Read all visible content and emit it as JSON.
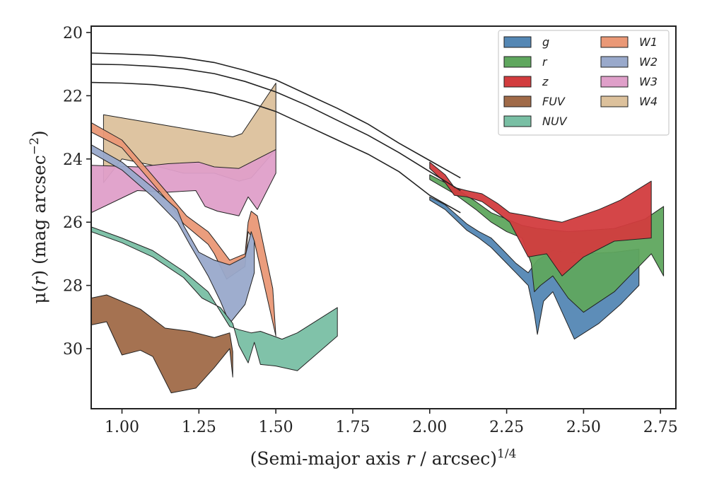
{
  "chart_data": {
    "type": "area",
    "xlabel_text": "(Semi-major axis ",
    "xlabel_var": "r",
    "xlabel_rest": " / arcsec)",
    "xlabel_sup": "1/4",
    "ylabel_mu": "μ(",
    "ylabel_r": "r",
    "ylabel_rest": ") (mag arcsec",
    "ylabel_sup": "−2",
    "ylabel_close": ")",
    "xlim": [
      0.9,
      2.8
    ],
    "ylim": [
      31.9,
      19.8
    ],
    "yinverted": true,
    "x_ticks": [
      1.0,
      1.25,
      1.5,
      1.75,
      2.0,
      2.25,
      2.5,
      2.75
    ],
    "x_tick_labels": [
      "1.00",
      "1.25",
      "1.50",
      "1.75",
      "2.00",
      "2.25",
      "2.50",
      "2.75"
    ],
    "y_ticks": [
      20,
      22,
      24,
      26,
      28,
      30
    ],
    "y_tick_labels": [
      "20",
      "22",
      "24",
      "26",
      "28",
      "30"
    ],
    "legend_placement": "top-right",
    "model_curves": [
      {
        "points": [
          [
            0.9,
            20.65
          ],
          [
            1.0,
            20.68
          ],
          [
            1.1,
            20.72
          ],
          [
            1.2,
            20.8
          ],
          [
            1.3,
            20.95
          ],
          [
            1.4,
            21.2
          ],
          [
            1.5,
            21.5
          ],
          [
            1.6,
            21.95
          ],
          [
            1.7,
            22.4
          ],
          [
            1.8,
            22.9
          ],
          [
            1.9,
            23.5
          ],
          [
            2.0,
            24.05
          ],
          [
            2.1,
            24.6
          ]
        ]
      },
      {
        "points": [
          [
            0.9,
            21.0
          ],
          [
            1.0,
            21.02
          ],
          [
            1.1,
            21.07
          ],
          [
            1.2,
            21.15
          ],
          [
            1.3,
            21.3
          ],
          [
            1.4,
            21.55
          ],
          [
            1.5,
            21.88
          ],
          [
            1.6,
            22.3
          ],
          [
            1.7,
            22.78
          ],
          [
            1.8,
            23.25
          ],
          [
            1.9,
            23.8
          ],
          [
            2.0,
            24.4
          ],
          [
            2.1,
            25.0
          ]
        ]
      },
      {
        "points": [
          [
            0.9,
            21.58
          ],
          [
            1.0,
            21.6
          ],
          [
            1.1,
            21.65
          ],
          [
            1.2,
            21.75
          ],
          [
            1.3,
            21.92
          ],
          [
            1.4,
            22.18
          ],
          [
            1.5,
            22.5
          ],
          [
            1.6,
            22.95
          ],
          [
            1.7,
            23.4
          ],
          [
            1.8,
            23.85
          ],
          [
            1.9,
            24.4
          ],
          [
            2.0,
            25.15
          ],
          [
            2.1,
            25.7
          ]
        ]
      }
    ],
    "series": [
      {
        "name": "W4",
        "color": "#dcc19c",
        "upper": [
          [
            0.94,
            22.6
          ],
          [
            1.06,
            22.8
          ],
          [
            1.18,
            23.0
          ],
          [
            1.3,
            23.2
          ],
          [
            1.36,
            23.3
          ],
          [
            1.39,
            23.2
          ],
          [
            1.5,
            21.6
          ]
        ],
        "lower": [
          [
            0.94,
            24.75
          ],
          [
            1.0,
            24.0
          ],
          [
            1.1,
            24.2
          ],
          [
            1.2,
            24.45
          ],
          [
            1.3,
            24.45
          ],
          [
            1.38,
            24.7
          ],
          [
            1.42,
            24.6
          ],
          [
            1.5,
            23.7
          ]
        ]
      },
      {
        "name": "W3",
        "color": "#df9fc9",
        "upper": [
          [
            0.9,
            24.2
          ],
          [
            1.05,
            24.25
          ],
          [
            1.15,
            24.15
          ],
          [
            1.25,
            24.1
          ],
          [
            1.3,
            24.25
          ],
          [
            1.38,
            24.3
          ],
          [
            1.5,
            23.7
          ]
        ],
        "lower": [
          [
            0.9,
            25.7
          ],
          [
            1.05,
            25.0
          ],
          [
            1.15,
            25.05
          ],
          [
            1.24,
            25.0
          ],
          [
            1.27,
            25.5
          ],
          [
            1.31,
            25.65
          ],
          [
            1.38,
            25.8
          ],
          [
            1.41,
            25.2
          ],
          [
            1.44,
            25.6
          ],
          [
            1.5,
            24.45
          ]
        ]
      },
      {
        "name": "W1",
        "color": "#ea9876",
        "upper": [
          [
            0.9,
            22.85
          ],
          [
            1.0,
            23.4
          ],
          [
            1.08,
            24.3
          ],
          [
            1.15,
            25.1
          ],
          [
            1.21,
            25.8
          ],
          [
            1.28,
            26.3
          ],
          [
            1.3,
            26.55
          ],
          [
            1.35,
            27.2
          ],
          [
            1.4,
            27.0
          ],
          [
            1.41,
            26.0
          ],
          [
            1.42,
            25.65
          ],
          [
            1.44,
            25.8
          ],
          [
            1.49,
            28.1
          ]
        ],
        "lower": [
          [
            0.9,
            23.15
          ],
          [
            1.0,
            23.65
          ],
          [
            1.08,
            24.55
          ],
          [
            1.15,
            25.35
          ],
          [
            1.2,
            26.05
          ],
          [
            1.28,
            26.7
          ],
          [
            1.3,
            27.0
          ],
          [
            1.34,
            27.8
          ],
          [
            1.4,
            27.4
          ],
          [
            1.41,
            26.3
          ],
          [
            1.43,
            26.6
          ],
          [
            1.5,
            29.6
          ]
        ]
      },
      {
        "name": "W2",
        "color": "#99a9cb",
        "upper": [
          [
            0.9,
            23.55
          ],
          [
            1.0,
            24.1
          ],
          [
            1.1,
            24.9
          ],
          [
            1.18,
            25.6
          ],
          [
            1.2,
            26.1
          ],
          [
            1.25,
            26.95
          ],
          [
            1.3,
            27.2
          ],
          [
            1.35,
            27.35
          ],
          [
            1.4,
            27.1
          ],
          [
            1.42,
            26.3
          ],
          [
            1.43,
            26.6
          ]
        ],
        "lower": [
          [
            0.9,
            23.8
          ],
          [
            1.0,
            24.35
          ],
          [
            1.1,
            25.2
          ],
          [
            1.18,
            26.0
          ],
          [
            1.22,
            26.7
          ],
          [
            1.28,
            27.7
          ],
          [
            1.32,
            28.5
          ],
          [
            1.35,
            29.2
          ],
          [
            1.4,
            28.6
          ],
          [
            1.43,
            27.6
          ]
        ]
      },
      {
        "name": "NUV",
        "color": "#79bfa4",
        "upper": [
          [
            0.9,
            26.15
          ],
          [
            1.0,
            26.5
          ],
          [
            1.1,
            26.9
          ],
          [
            1.2,
            27.55
          ],
          [
            1.28,
            28.2
          ],
          [
            1.35,
            29.3
          ],
          [
            1.38,
            29.4
          ],
          [
            1.42,
            29.5
          ],
          [
            1.45,
            29.45
          ],
          [
            1.52,
            29.7
          ],
          [
            1.57,
            29.5
          ],
          [
            1.7,
            28.7
          ]
        ],
        "lower": [
          [
            0.9,
            26.3
          ],
          [
            1.0,
            26.65
          ],
          [
            1.1,
            27.1
          ],
          [
            1.2,
            27.75
          ],
          [
            1.26,
            28.4
          ],
          [
            1.32,
            28.7
          ],
          [
            1.36,
            29.2
          ],
          [
            1.38,
            29.9
          ],
          [
            1.41,
            30.45
          ],
          [
            1.43,
            29.8
          ],
          [
            1.45,
            30.5
          ],
          [
            1.5,
            30.55
          ],
          [
            1.57,
            30.7
          ],
          [
            1.7,
            29.6
          ]
        ]
      },
      {
        "name": "FUV",
        "color": "#a06a48",
        "upper": [
          [
            0.9,
            28.4
          ],
          [
            0.95,
            28.3
          ],
          [
            1.06,
            28.75
          ],
          [
            1.14,
            29.35
          ],
          [
            1.22,
            29.45
          ],
          [
            1.3,
            29.65
          ],
          [
            1.35,
            29.5
          ],
          [
            1.36,
            30.1
          ]
        ],
        "lower": [
          [
            0.9,
            29.25
          ],
          [
            0.95,
            29.15
          ],
          [
            1.0,
            30.2
          ],
          [
            1.06,
            30.05
          ],
          [
            1.1,
            30.25
          ],
          [
            1.16,
            31.4
          ],
          [
            1.24,
            31.25
          ],
          [
            1.3,
            30.6
          ],
          [
            1.35,
            30.0
          ],
          [
            1.36,
            30.9
          ]
        ]
      },
      {
        "name": "g",
        "color": "#5487b4",
        "upper": [
          [
            2.0,
            25.2
          ],
          [
            2.05,
            25.45
          ],
          [
            2.12,
            26.05
          ],
          [
            2.16,
            26.3
          ],
          [
            2.2,
            26.5
          ],
          [
            2.24,
            26.9
          ],
          [
            2.28,
            27.3
          ],
          [
            2.32,
            27.6
          ],
          [
            2.35,
            27.2
          ],
          [
            2.4,
            26.9
          ],
          [
            2.5,
            27.0
          ],
          [
            2.6,
            26.95
          ],
          [
            2.68,
            26.85
          ]
        ],
        "lower": [
          [
            2.0,
            25.3
          ],
          [
            2.05,
            25.6
          ],
          [
            2.12,
            26.25
          ],
          [
            2.16,
            26.5
          ],
          [
            2.2,
            26.8
          ],
          [
            2.24,
            27.2
          ],
          [
            2.28,
            27.6
          ],
          [
            2.32,
            28.0
          ],
          [
            2.34,
            28.9
          ],
          [
            2.35,
            29.55
          ],
          [
            2.37,
            28.5
          ],
          [
            2.4,
            28.2
          ],
          [
            2.47,
            29.7
          ],
          [
            2.55,
            29.2
          ],
          [
            2.62,
            28.6
          ],
          [
            2.68,
            28.0
          ]
        ]
      },
      {
        "name": "r",
        "color": "#5fa75e",
        "upper": [
          [
            2.0,
            24.5
          ],
          [
            2.08,
            24.9
          ],
          [
            2.15,
            25.35
          ],
          [
            2.2,
            25.7
          ],
          [
            2.25,
            25.9
          ],
          [
            2.3,
            26.1
          ],
          [
            2.35,
            26.2
          ],
          [
            2.45,
            26.3
          ],
          [
            2.6,
            26.2
          ],
          [
            2.7,
            25.9
          ],
          [
            2.76,
            25.5
          ]
        ],
        "lower": [
          [
            2.0,
            24.65
          ],
          [
            2.08,
            25.1
          ],
          [
            2.15,
            25.6
          ],
          [
            2.2,
            26.0
          ],
          [
            2.25,
            26.3
          ],
          [
            2.3,
            26.5
          ],
          [
            2.33,
            27.3
          ],
          [
            2.34,
            28.2
          ],
          [
            2.36,
            28.0
          ],
          [
            2.4,
            27.7
          ],
          [
            2.45,
            28.4
          ],
          [
            2.5,
            28.85
          ],
          [
            2.6,
            28.2
          ],
          [
            2.72,
            27.0
          ],
          [
            2.76,
            27.7
          ]
        ]
      },
      {
        "name": "z",
        "color": "#d23c3e",
        "upper": [
          [
            2.0,
            24.1
          ],
          [
            2.05,
            24.5
          ],
          [
            2.08,
            24.9
          ],
          [
            2.12,
            25.0
          ],
          [
            2.17,
            25.1
          ],
          [
            2.22,
            25.4
          ],
          [
            2.26,
            25.7
          ],
          [
            2.32,
            25.8
          ],
          [
            2.37,
            25.9
          ],
          [
            2.43,
            26.0
          ],
          [
            2.55,
            25.6
          ],
          [
            2.62,
            25.3
          ],
          [
            2.72,
            24.7
          ]
        ],
        "lower": [
          [
            2.0,
            24.3
          ],
          [
            2.05,
            24.75
          ],
          [
            2.08,
            25.15
          ],
          [
            2.12,
            25.2
          ],
          [
            2.17,
            25.35
          ],
          [
            2.22,
            25.7
          ],
          [
            2.26,
            26.0
          ],
          [
            2.32,
            27.1
          ],
          [
            2.38,
            27.0
          ],
          [
            2.43,
            27.7
          ],
          [
            2.5,
            27.1
          ],
          [
            2.6,
            26.6
          ],
          [
            2.72,
            26.5
          ]
        ]
      }
    ],
    "legend": [
      {
        "label": "g",
        "color": "#5487b4"
      },
      {
        "label": "r",
        "color": "#5fa75e"
      },
      {
        "label": "z",
        "color": "#d23c3e"
      },
      {
        "label": "FUV",
        "color": "#a06a48"
      },
      {
        "label": "NUV",
        "color": "#79bfa4"
      },
      {
        "label": "W1",
        "color": "#ea9876"
      },
      {
        "label": "W2",
        "color": "#99a9cb"
      },
      {
        "label": "W3",
        "color": "#df9fc9"
      },
      {
        "label": "W4",
        "color": "#dcc19c"
      }
    ]
  }
}
